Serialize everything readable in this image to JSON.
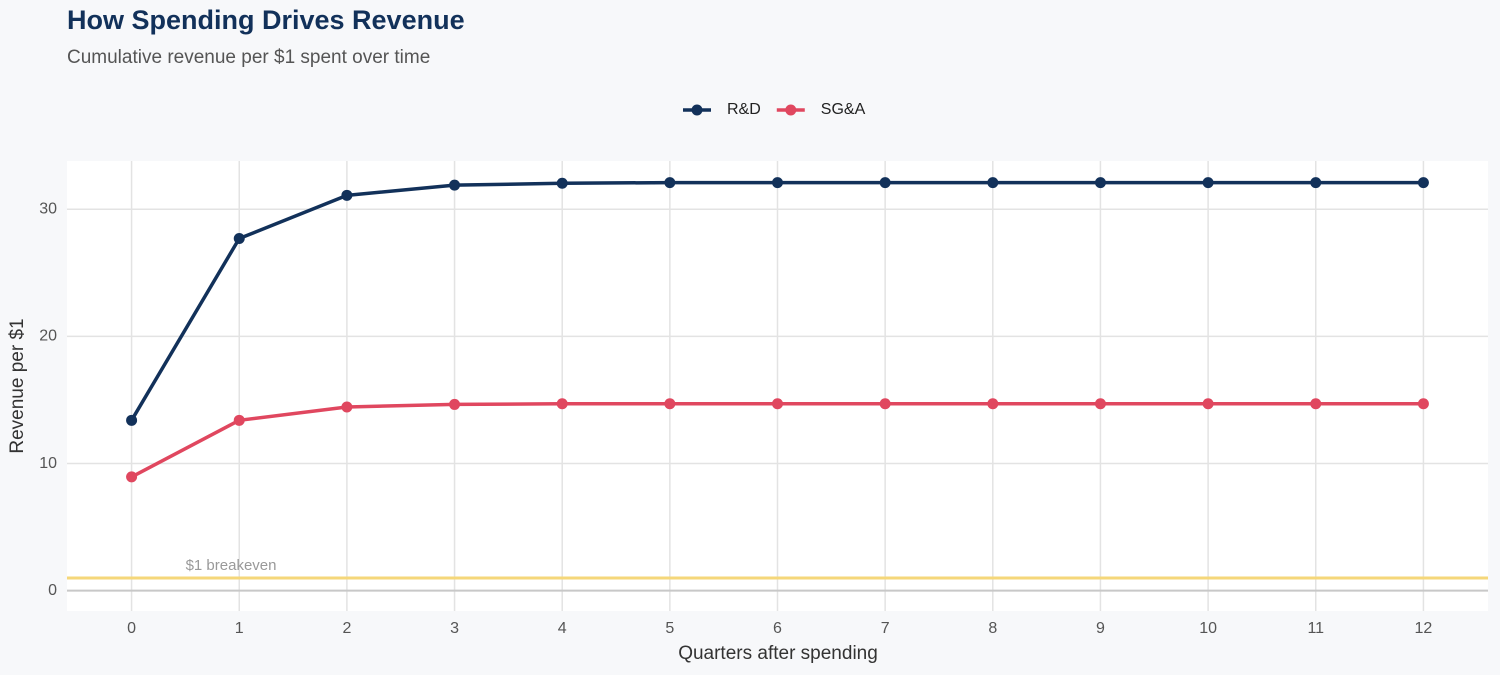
{
  "chart_data": {
    "type": "line",
    "title": "How Spending Drives Revenue",
    "subtitle": "Cumulative revenue per $1 spent over time",
    "x_label": "Quarters after spending",
    "y_label": "Revenue per $1",
    "x": [
      0,
      1,
      2,
      3,
      4,
      5,
      6,
      7,
      8,
      9,
      10,
      11,
      12
    ],
    "series": [
      {
        "name": "R&D",
        "color": "#12315a",
        "values": [
          13.4,
          27.7,
          31.1,
          31.9,
          32.05,
          32.1,
          32.1,
          32.1,
          32.1,
          32.1,
          32.1,
          32.1,
          32.1
        ]
      },
      {
        "name": "SG&A",
        "color": "#e0475f",
        "values": [
          8.95,
          13.4,
          14.45,
          14.65,
          14.7,
          14.7,
          14.7,
          14.7,
          14.7,
          14.7,
          14.7,
          14.7,
          14.7
        ]
      }
    ],
    "hline": {
      "value": 1,
      "label": "$1 breakeven",
      "color": "#f5d77a"
    },
    "xlim": [
      -0.6,
      12.6
    ],
    "ylim": [
      -1.6,
      33.8
    ],
    "xticks": [
      0,
      1,
      2,
      3,
      4,
      5,
      6,
      7,
      8,
      9,
      10,
      11,
      12
    ],
    "yticks": [
      0,
      10,
      20,
      30
    ],
    "grid": true,
    "legend": "top"
  }
}
